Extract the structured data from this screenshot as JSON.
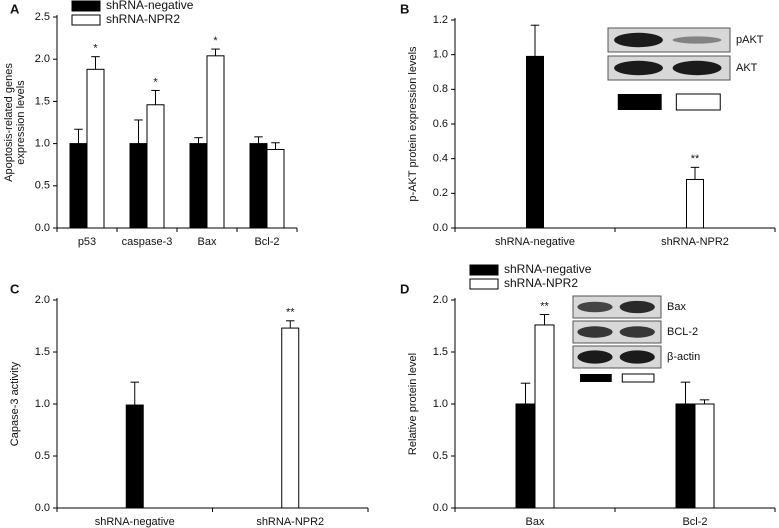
{
  "chart_data": [
    {
      "type": "bar",
      "panel": "A",
      "ylabel": [
        "Apoptosis-related genes",
        "expression levels"
      ],
      "categories": [
        "p53",
        "caspase-3",
        "Bax",
        "Bcl-2"
      ],
      "series": [
        {
          "name": "shRNA-negative",
          "color": "#000000",
          "values": [
            1.0,
            1.0,
            1.0,
            1.0
          ],
          "errors": [
            0.17,
            0.28,
            0.07,
            0.08
          ],
          "annotations": [
            null,
            null,
            null,
            null
          ]
        },
        {
          "name": "shRNA-NPR2",
          "color": "#ffffff",
          "values": [
            1.88,
            1.46,
            2.04,
            0.93
          ],
          "errors": [
            0.15,
            0.17,
            0.08,
            0.08
          ],
          "annotations": [
            "*",
            "*",
            "*",
            null
          ]
        }
      ],
      "ylim": [
        0,
        2.5
      ],
      "yticks": [
        {
          "value": 0,
          "label": "0.0"
        },
        0.5,
        {
          "value": 1,
          "label": "1.0"
        },
        1.5,
        {
          "value": 2,
          "label": "2.0"
        },
        2.5
      ]
    },
    {
      "type": "bar",
      "panel": "B",
      "ylabel": [
        "p-AKT protein expression levels"
      ],
      "categories": [
        "shRNA-negative",
        "shRNA-NPR2"
      ],
      "values": [
        0.99,
        0.28
      ],
      "errors": [
        0.18,
        0.07
      ],
      "colors": [
        "#000000",
        "#ffffff"
      ],
      "annotations": [
        null,
        "**"
      ],
      "ylim": [
        0,
        1.2
      ],
      "yticks": [
        {
          "value": 0,
          "label": "0.0"
        },
        0.2,
        0.4,
        0.6,
        0.8,
        {
          "value": 1,
          "label": "1.0"
        },
        1.2
      ],
      "inset_labels": [
        "pAKT",
        "AKT"
      ]
    },
    {
      "type": "bar",
      "panel": "C",
      "ylabel": [
        "Capase-3 activity"
      ],
      "categories": [
        "shRNA-negative",
        "shRNA-NPR2"
      ],
      "values": [
        0.99,
        1.73
      ],
      "errors": [
        0.22,
        0.07
      ],
      "colors": [
        "#000000",
        "#ffffff"
      ],
      "annotations": [
        null,
        "**"
      ],
      "ylim": [
        0,
        2.0
      ],
      "yticks": [
        {
          "value": 0,
          "label": "0.0"
        },
        0.5,
        {
          "value": 1,
          "label": "1.0"
        },
        1.5,
        {
          "value": 2,
          "label": "2.0"
        }
      ]
    },
    {
      "type": "bar",
      "panel": "D",
      "ylabel": [
        "Relative protein level"
      ],
      "categories": [
        "Bax",
        "Bcl-2"
      ],
      "series": [
        {
          "name": "shRNA-negative",
          "color": "#000000",
          "values": [
            1.0,
            1.0
          ],
          "errors": [
            0.2,
            0.21
          ],
          "annotations": [
            null,
            null
          ]
        },
        {
          "name": "shRNA-NPR2",
          "color": "#ffffff",
          "values": [
            1.76,
            1.0
          ],
          "errors": [
            0.1,
            0.04
          ],
          "annotations": [
            "**",
            null
          ]
        }
      ],
      "ylim": [
        0,
        2.0
      ],
      "yticks": [
        {
          "value": 0,
          "label": "0.0"
        },
        0.5,
        {
          "value": 1,
          "label": "1.0"
        },
        1.5,
        {
          "value": 2,
          "label": "2.0"
        }
      ],
      "inset_labels": [
        "Bax",
        "BCL-2",
        "β-actin"
      ]
    }
  ]
}
